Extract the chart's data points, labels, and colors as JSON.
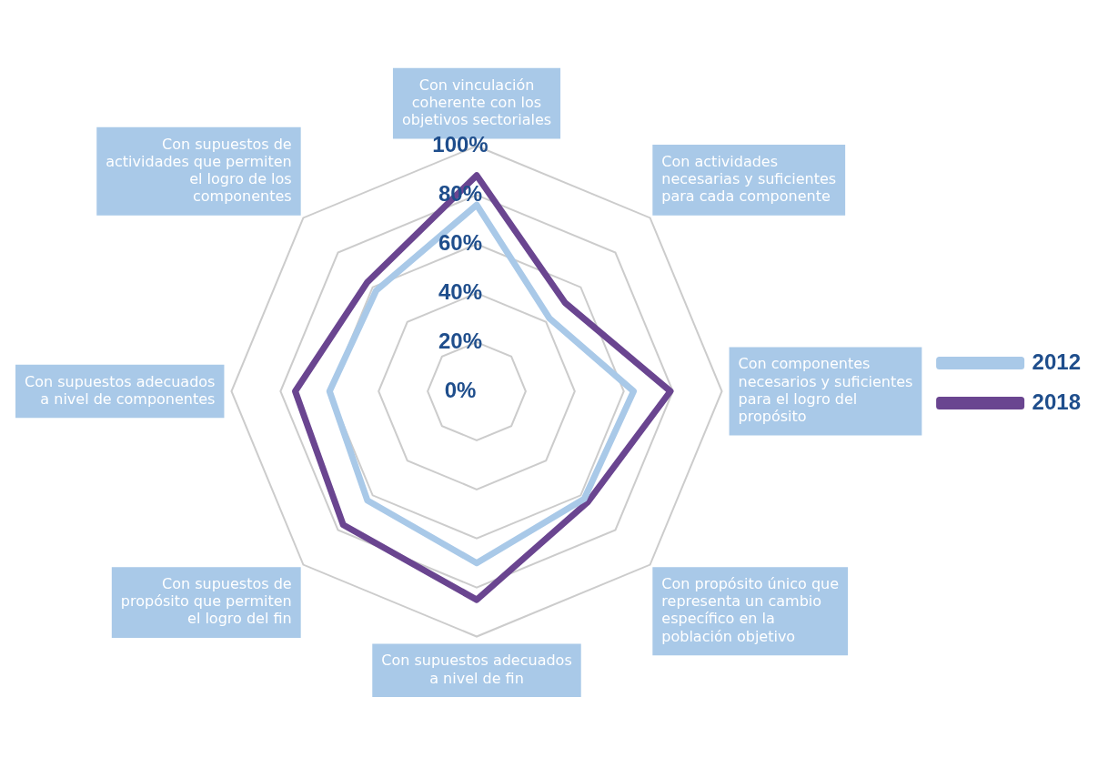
{
  "chart_data": {
    "type": "radar",
    "categories": [
      "Con vinculación coherente con los objetivos sectoriales",
      "Con actividades necesarias y suficientes para cada componente",
      "Con componentes necesarios y suficientes para el logro del propósito",
      "Con propósito único que representa un cambio específico en la población objetivo",
      "Con supuestos adecuados a nivel de fin",
      "Con supuestos de propósito que permiten el logro del fin",
      "Con supuestos adecuados a nivel de componentes",
      "Con supuestos de actividades que permiten el logro de los componentes"
    ],
    "series": [
      {
        "name": "2012",
        "color": "#a9c9e8",
        "values": [
          76,
          42,
          64,
          62,
          70,
          63,
          60,
          58
        ]
      },
      {
        "name": "2018",
        "color": "#6a4590",
        "values": [
          88,
          51,
          79,
          64,
          85,
          77,
          74,
          63
        ]
      }
    ],
    "ylim": [
      0,
      100
    ],
    "yticks": [
      {
        "value": 0,
        "label": "0%"
      },
      {
        "value": 20,
        "label": "20%"
      },
      {
        "value": 40,
        "label": "40%"
      },
      {
        "value": 60,
        "label": "60%"
      },
      {
        "value": 80,
        "label": "80%"
      },
      {
        "value": 100,
        "label": "100%"
      }
    ],
    "grid": true,
    "legend": "right",
    "marker": "none"
  }
}
